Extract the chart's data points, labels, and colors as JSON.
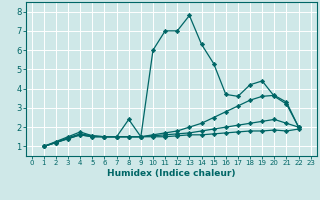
{
  "xlabel": "Humidex (Indice chaleur)",
  "bg_color": "#cfe8e8",
  "grid_color": "#b8d8d8",
  "line_color": "#006666",
  "xlim": [
    -0.5,
    23.5
  ],
  "ylim": [
    0.5,
    8.5
  ],
  "xtick_vals": [
    0,
    1,
    2,
    3,
    4,
    5,
    6,
    7,
    8,
    9,
    10,
    11,
    12,
    13,
    14,
    15,
    16,
    17,
    18,
    19,
    20,
    21,
    22,
    23
  ],
  "ytick_vals": [
    1,
    2,
    3,
    4,
    5,
    6,
    7,
    8
  ],
  "series": [
    {
      "x": [
        1,
        2,
        3,
        4,
        5,
        6,
        7,
        8,
        9,
        10,
        11,
        12,
        13,
        14,
        15,
        16,
        17,
        18,
        19,
        20,
        21,
        22
      ],
      "y": [
        1.0,
        1.25,
        1.5,
        1.75,
        1.55,
        1.5,
        1.5,
        2.4,
        1.5,
        6.0,
        7.0,
        7.0,
        7.8,
        6.3,
        5.3,
        3.7,
        3.6,
        4.2,
        4.4,
        3.6,
        3.2,
        2.0
      ]
    },
    {
      "x": [
        1,
        2,
        3,
        4,
        5,
        6,
        7,
        8,
        9,
        10,
        11,
        12,
        13,
        14,
        15,
        16,
        17,
        18,
        19,
        20,
        21,
        22
      ],
      "y": [
        1.0,
        1.2,
        1.45,
        1.65,
        1.55,
        1.5,
        1.5,
        1.5,
        1.5,
        1.6,
        1.7,
        1.8,
        2.0,
        2.2,
        2.5,
        2.8,
        3.1,
        3.4,
        3.6,
        3.65,
        3.3,
        2.0
      ]
    },
    {
      "x": [
        1,
        2,
        3,
        4,
        5,
        6,
        7,
        8,
        9,
        10,
        11,
        12,
        13,
        14,
        15,
        16,
        17,
        18,
        19,
        20,
        21,
        22
      ],
      "y": [
        1.0,
        1.2,
        1.4,
        1.6,
        1.5,
        1.5,
        1.5,
        1.5,
        1.5,
        1.55,
        1.6,
        1.65,
        1.7,
        1.8,
        1.9,
        2.0,
        2.1,
        2.2,
        2.3,
        2.4,
        2.2,
        2.0
      ]
    },
    {
      "x": [
        1,
        2,
        3,
        4,
        5,
        6,
        7,
        8,
        9,
        10,
        11,
        12,
        13,
        14,
        15,
        16,
        17,
        18,
        19,
        20,
        21,
        22
      ],
      "y": [
        1.0,
        1.2,
        1.4,
        1.6,
        1.5,
        1.5,
        1.5,
        1.5,
        1.5,
        1.5,
        1.5,
        1.55,
        1.6,
        1.6,
        1.65,
        1.7,
        1.75,
        1.8,
        1.8,
        1.85,
        1.8,
        1.9
      ]
    }
  ]
}
